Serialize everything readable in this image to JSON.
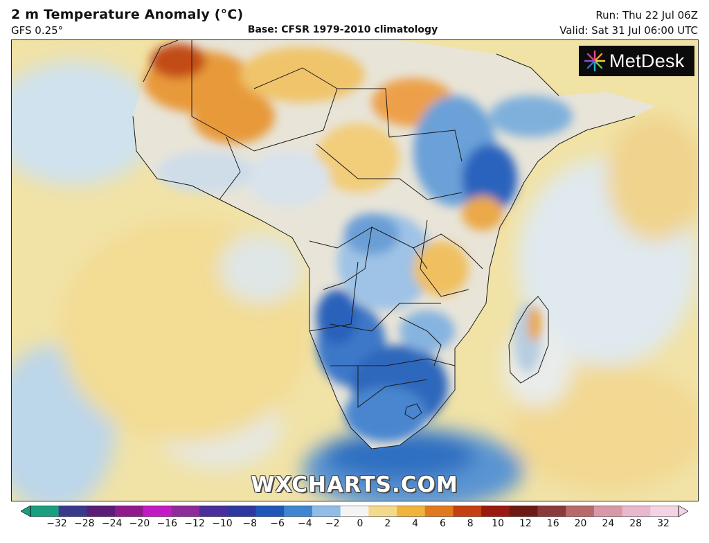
{
  "header": {
    "title": "2 m Temperature Anomaly (°C)",
    "model": "GFS 0.25°",
    "base": "Base: CFSR 1979-2010 climatology",
    "run": "Run: Thu 22 Jul 06Z",
    "valid": "Valid: Sat 31 Jul 06:00 UTC"
  },
  "logo": {
    "text": "MetDesk"
  },
  "watermark": "WXCHARTS.COM",
  "colorbar": {
    "ticks": [
      "−32",
      "−28",
      "−24",
      "−20",
      "−16",
      "−12",
      "−10",
      "−8",
      "−6",
      "−4",
      "−2",
      "0",
      "2",
      "4",
      "6",
      "8",
      "10",
      "12",
      "16",
      "20",
      "24",
      "28",
      "32"
    ],
    "colors": [
      "#1a9e80",
      "#3a3a8c",
      "#5a1e78",
      "#8e1a8e",
      "#c31bc3",
      "#8f2a9a",
      "#4a2e9a",
      "#2e38a0",
      "#2056b8",
      "#3f86d1",
      "#8fbde6",
      "#f4f4f4",
      "#f3d98a",
      "#f0b43c",
      "#e07a1e",
      "#c43f12",
      "#9a1a10",
      "#6e1a14",
      "#8a3a3a",
      "#b86a6a",
      "#d898a8",
      "#e8b8cc",
      "#f4d4e4"
    ],
    "scale": "°C"
  }
}
